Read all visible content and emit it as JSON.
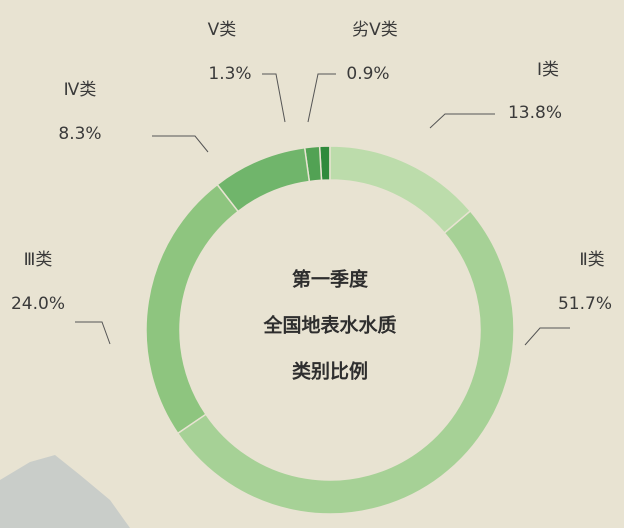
{
  "chart_data": {
    "type": "donut",
    "title": [
      "第一季度",
      "全国地表水水质",
      "类别比例"
    ],
    "categories": [
      "Ⅰ类",
      "Ⅱ类",
      "Ⅲ类",
      "Ⅳ类",
      "Ⅴ类",
      "劣Ⅴ类"
    ],
    "values": [
      13.8,
      51.7,
      24.0,
      8.3,
      1.3,
      0.9
    ],
    "value_labels": [
      "13.8%",
      "51.7%",
      "24.0%",
      "8.3%",
      "1.3%",
      "0.9%"
    ],
    "colors": [
      "#bcdcab",
      "#a6d196",
      "#8ec57f",
      "#70b56b",
      "#52a254",
      "#2f8a3c"
    ]
  }
}
